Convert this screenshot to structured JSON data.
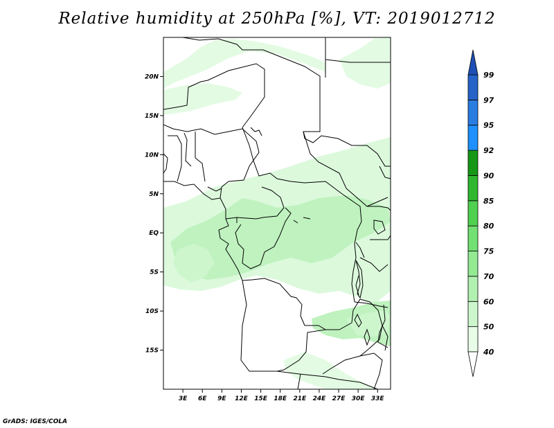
{
  "title": "Relative humidity at 250hPa [%], VT: 2019012712",
  "footer": "GrADS: IGES/COLA",
  "map": {
    "lon_range": [
      0,
      35
    ],
    "lat_range": [
      -20,
      25
    ],
    "lon_ticks": [
      "3E",
      "6E",
      "9E",
      "12E",
      "15E",
      "18E",
      "21E",
      "24E",
      "27E",
      "30E",
      "33E"
    ],
    "lat_ticks": [
      "20N",
      "15N",
      "10N",
      "5N",
      "EQ",
      "5S",
      "10S",
      "15S"
    ],
    "fill_color_light": "#e0fce0",
    "fill_color_mid": "#b4f0b4"
  },
  "colorbar": {
    "labels": [
      "40",
      "50",
      "60",
      "70",
      "75",
      "80",
      "85",
      "90",
      "92",
      "95",
      "97",
      "99"
    ],
    "colors": [
      "#ffffff",
      "#e8fce8",
      "#cdf6cd",
      "#b1f0b1",
      "#93ea93",
      "#72e072",
      "#4fd04f",
      "#2fb72f",
      "#169816",
      "#1e90ff",
      "#2a7de0",
      "#2563c9",
      "#1e4fb4"
    ]
  }
}
